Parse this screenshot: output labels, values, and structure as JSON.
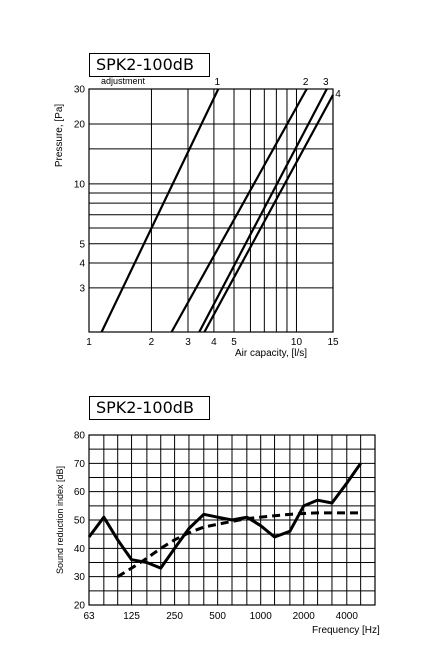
{
  "chart_data": [
    {
      "type": "line",
      "title": "SPK2-100dB",
      "annotation": "adjustment",
      "xlabel": "Air capacity, [l/s]",
      "ylabel": "Pressure, [Pa]",
      "xscale": "log",
      "yscale": "log",
      "xlim": [
        1,
        15
      ],
      "ylim": [
        1.8,
        30
      ],
      "xticks": [
        1,
        2,
        3,
        4,
        5,
        10,
        15
      ],
      "yticks": [
        3,
        4,
        5,
        10,
        20,
        30
      ],
      "x_gridlines": [
        1,
        2,
        3,
        4,
        5,
        6,
        7,
        8,
        9,
        10,
        15
      ],
      "y_gridlines": [
        3,
        4,
        5,
        6,
        7,
        8,
        9,
        10,
        15,
        20,
        30
      ],
      "grid": true,
      "series": [
        {
          "name": "1",
          "x": [
            1.15,
            4.2
          ],
          "y": [
            1.8,
            30
          ]
        },
        {
          "name": "2",
          "x": [
            2.5,
            11.2
          ],
          "y": [
            1.8,
            30
          ]
        },
        {
          "name": "3",
          "x": [
            3.4,
            14.0
          ],
          "y": [
            1.8,
            30
          ]
        },
        {
          "name": "4",
          "x": [
            3.6,
            15.0
          ],
          "y": [
            1.8,
            28
          ]
        }
      ]
    },
    {
      "type": "line",
      "title": "SPK2-100dB",
      "xlabel": "Frequency [Hz]",
      "ylabel": "Sound reduction index [dB]",
      "xscale": "log",
      "xlim": [
        63,
        6300
      ],
      "ylim": [
        20,
        80
      ],
      "xticks": [
        63,
        125,
        250,
        500,
        1000,
        2000,
        4000
      ],
      "yticks": [
        20,
        30,
        40,
        50,
        60,
        70,
        80
      ],
      "grid": true,
      "series": [
        {
          "style": "solid",
          "x": [
            63,
            80,
            100,
            125,
            160,
            200,
            250,
            315,
            400,
            500,
            630,
            800,
            1000,
            1250,
            1600,
            2000,
            2500,
            3150,
            4000,
            5000
          ],
          "y": [
            44,
            51,
            43,
            36,
            35,
            33,
            40,
            47,
            52,
            51,
            50,
            51,
            48,
            44,
            46,
            55,
            57,
            56,
            63,
            70
          ]
        },
        {
          "style": "dashed",
          "x": [
            100,
            125,
            160,
            200,
            250,
            315,
            400,
            500,
            630,
            800,
            1000,
            1250,
            1600,
            2000,
            2500,
            3150,
            4000,
            5000
          ],
          "y": [
            30,
            33,
            36.5,
            40,
            43,
            45.5,
            47.5,
            48.5,
            49.5,
            50.5,
            51,
            51.5,
            52,
            52.3,
            52.5,
            52.5,
            52.5,
            52.5
          ]
        }
      ]
    }
  ]
}
